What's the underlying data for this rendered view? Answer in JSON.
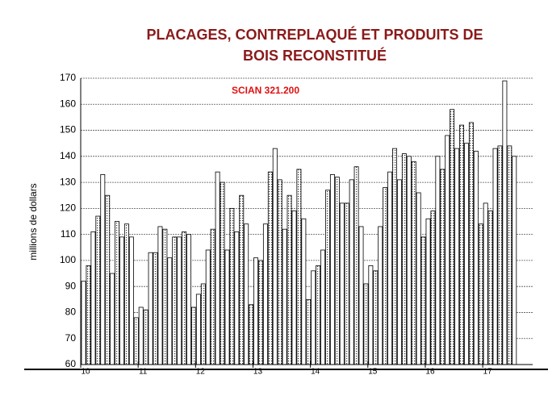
{
  "chart_data": {
    "type": "bar",
    "title": [
      "PLACAGES, CONTREPLAQUÉ ET PRODUITS DE",
      "BOIS RECONSTITUÉ"
    ],
    "annotation": "SCIAN 321.200",
    "y_label": "millions de dollars",
    "categories": [
      "10",
      null,
      null,
      null,
      null,
      null,
      null,
      null,
      null,
      null,
      null,
      null,
      "11",
      null,
      null,
      null,
      null,
      null,
      null,
      null,
      null,
      null,
      null,
      null,
      "12",
      null,
      null,
      null,
      null,
      null,
      null,
      null,
      null,
      null,
      null,
      null,
      "13",
      null,
      null,
      null,
      null,
      null,
      null,
      null,
      null,
      null,
      null,
      null,
      "14",
      null,
      null,
      null,
      null,
      null,
      null,
      null,
      null,
      null,
      null,
      null,
      "15",
      null,
      null,
      null,
      null,
      null,
      null,
      null,
      null,
      null,
      null,
      null,
      "16",
      null,
      null,
      null,
      null,
      null,
      null,
      null,
      null,
      null,
      null,
      null,
      "17",
      null,
      null,
      null,
      null,
      null,
      null
    ],
    "values": [
      92,
      98,
      111,
      117,
      133,
      125,
      95,
      115,
      109,
      114,
      109,
      78,
      82,
      81,
      103,
      103,
      113,
      112,
      101,
      109,
      109,
      111,
      110,
      82,
      87,
      91,
      104,
      112,
      134,
      130,
      104,
      120,
      111,
      125,
      114,
      83,
      101,
      100,
      114,
      134,
      143,
      131,
      112,
      125,
      119,
      135,
      116,
      85,
      96,
      98,
      104,
      127,
      133,
      132,
      122,
      122,
      131,
      136,
      113,
      91,
      98,
      96,
      113,
      128,
      134,
      143,
      131,
      141,
      140,
      138,
      126,
      109,
      116,
      119,
      140,
      135,
      148,
      158,
      143,
      152,
      145,
      153,
      142,
      114,
      122,
      119,
      143,
      144,
      169,
      144,
      140
    ],
    "ylim": [
      60,
      170
    ],
    "yticks": [
      60,
      70,
      80,
      90,
      100,
      110,
      120,
      130,
      140,
      150,
      160,
      170
    ],
    "grid": true,
    "title_color": "#8b1a1a",
    "annotation_color": "#e01010"
  }
}
